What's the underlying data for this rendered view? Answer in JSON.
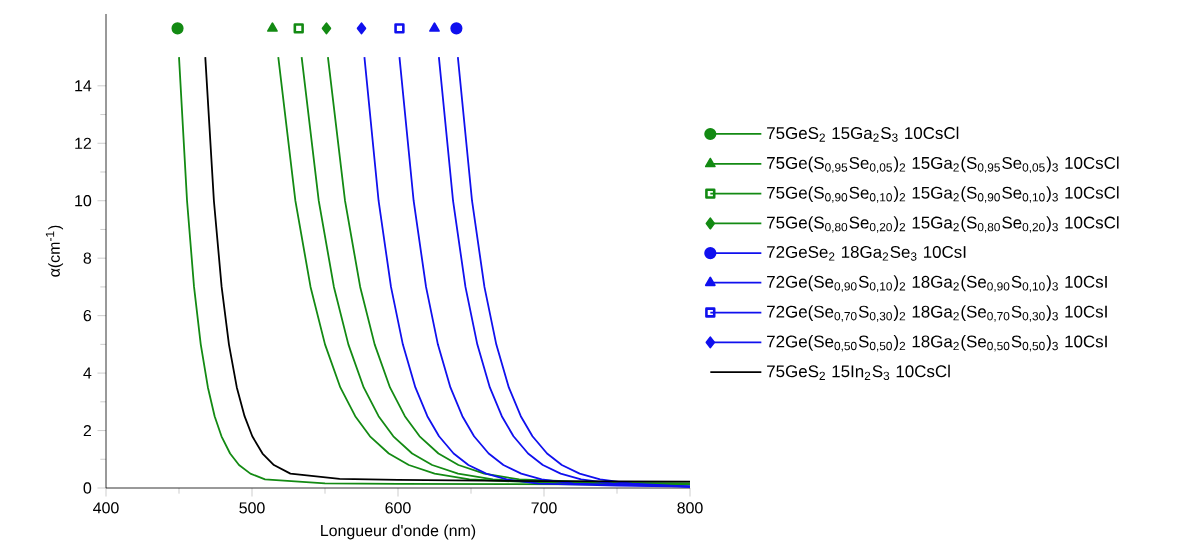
{
  "chart_data": {
    "type": "line",
    "xlabel": "Longueur d'onde (nm)",
    "ylabel": "α(cm$^{-1}$)",
    "xlim": [
      400,
      800
    ],
    "xticks": [
      400,
      500,
      600,
      700,
      800
    ],
    "ylim": [
      0,
      16.5
    ],
    "yticks": [
      0,
      2,
      4,
      6,
      8,
      10,
      12,
      14
    ],
    "legend": "right",
    "series": [
      {
        "type": "scatter",
        "name": "75GeS$_{2}$ 15Ga$_{2}$S$_{3}$ 10CsCl",
        "color": "#138a13",
        "marker": "circle",
        "x": [
          449
        ],
        "values": [
          16
        ]
      },
      {
        "type": "scatter",
        "name": "75Ge(S$_{0,95}$Se$_{0,05}$)$_{2}$ 15Ga$_{2}$(S$_{0,95}$Se$_{0,05}$)$_{3}$ 10CsCl",
        "color": "#138a13",
        "marker": "triangle",
        "x": [
          514
        ],
        "values": [
          16
        ]
      },
      {
        "type": "scatter",
        "name": "75Ge(S$_{0,90}$Se$_{0,10}$)$_{2}$ 15Ga$_{2}$(S$_{0,90}$Se$_{0,10}$)$_{3}$ 10CsCl",
        "color": "#138a13",
        "marker": "square",
        "x": [
          532
        ],
        "values": [
          16
        ]
      },
      {
        "type": "scatter",
        "name": "75Ge(S$_{0,80}$Se$_{0,20}$)$_{2}$ 15Ga$_{2}$(S$_{0,80}$Se$_{0,20}$)$_{3}$ 10CsCl",
        "color": "#138a13",
        "marker": "diamond",
        "x": [
          551
        ],
        "values": [
          16
        ]
      },
      {
        "type": "scatter",
        "name": "72GeSe$_{2}$ 18Ga$_{2}$Se$_{3}$ 10CsI",
        "color": "#1010ee",
        "marker": "circle",
        "x": [
          640
        ],
        "values": [
          16
        ]
      },
      {
        "type": "scatter",
        "name": "72Ge(Se$_{0,90}$S$_{0,10}$)$_{2}$ 18Ga$_{2}$(Se$_{0,90}$S$_{0,10}$)$_{3}$ 10CsI",
        "color": "#1010ee",
        "marker": "triangle",
        "x": [
          625
        ],
        "values": [
          16
        ]
      },
      {
        "type": "scatter",
        "name": "72Ge(Se$_{0,70}$S$_{0,30}$)$_{2}$ 18Ga$_{2}$(Se$_{0,70}$S$_{0,30}$)$_{3}$ 10CsI",
        "color": "#1010ee",
        "marker": "square",
        "x": [
          601
        ],
        "values": [
          16
        ]
      },
      {
        "type": "scatter",
        "name": "72Ge(Se$_{0,50}$S$_{0,50}$)$_{2}$ 18Ga$_{2}$(Se$_{0,50}$S$_{0,50}$)$_{3}$ 10CsI",
        "color": "#1010ee",
        "marker": "diamond",
        "x": [
          575
        ],
        "values": [
          16
        ]
      },
      {
        "color": "#138a13",
        "x": [
          450,
          455.5,
          460.3,
          464.9,
          469.8,
          474.4,
          479.1,
          485.0,
          491.1,
          498.9,
          508.9,
          550,
          600,
          700,
          800
        ],
        "values": [
          15,
          10,
          7,
          5,
          3.5,
          2.5,
          1.8,
          1.2,
          0.8,
          0.5,
          0.3,
          0.16,
          0.14,
          0.13,
          0.12
        ]
      },
      {
        "color": "#138a13",
        "x": [
          518,
          529.7,
          540.1,
          550,
          560.5,
          570.7,
          580.8,
          593.7,
          607.4,
          625.1,
          649,
          700,
          800
        ],
        "values": [
          15,
          10,
          7,
          5,
          3.5,
          2.5,
          1.8,
          1.2,
          0.8,
          0.5,
          0.3,
          0.18,
          0.15
        ]
      },
      {
        "color": "#138a13",
        "x": [
          534,
          545.7,
          556.1,
          566,
          576.5,
          586.7,
          596.8,
          609.7,
          623.4,
          641.1,
          665,
          700,
          800
        ],
        "values": [
          15,
          10,
          7,
          5,
          3.5,
          2.5,
          1.8,
          1.2,
          0.8,
          0.5,
          0.3,
          0.2,
          0.15
        ]
      },
      {
        "color": "#138a13",
        "x": [
          552,
          563.7,
          574.1,
          584,
          594.5,
          604.7,
          614.8,
          627.7,
          641.4,
          659.1,
          683,
          750,
          800
        ],
        "values": [
          15,
          10,
          7,
          5,
          3.5,
          2.5,
          1.8,
          1.2,
          0.8,
          0.5,
          0.3,
          0.17,
          0.15
        ]
      },
      {
        "color": "#1010ee",
        "x": [
          641,
          650.7,
          659.2,
          667.3,
          675.9,
          684.1,
          692.1,
          702.1,
          712.2,
          724.4,
          738.4,
          760.2,
          800
        ],
        "values": [
          15,
          10,
          7,
          5,
          3.5,
          2.5,
          1.8,
          1.2,
          0.8,
          0.5,
          0.3,
          0.15,
          0.05
        ]
      },
      {
        "color": "#1010ee",
        "x": [
          628,
          637.7,
          646.2,
          654.3,
          662.9,
          671.1,
          679.1,
          689.1,
          699.2,
          711.4,
          725.4,
          747.2,
          800
        ],
        "values": [
          15,
          10,
          7,
          5,
          3.5,
          2.5,
          1.8,
          1.2,
          0.8,
          0.5,
          0.3,
          0.15,
          0.05
        ]
      },
      {
        "color": "#1010ee",
        "x": [
          601,
          610.7,
          619.2,
          627.3,
          635.9,
          644.1,
          652.1,
          662.1,
          672.2,
          684.4,
          698.4,
          720.2,
          800
        ],
        "values": [
          15,
          10,
          7,
          5,
          3.5,
          2.5,
          1.8,
          1.2,
          0.8,
          0.5,
          0.3,
          0.15,
          0.05
        ]
      },
      {
        "color": "#1010ee",
        "x": [
          577,
          586.7,
          595.2,
          603.3,
          611.9,
          620.1,
          628.1,
          638.1,
          648.2,
          660.4,
          674.4,
          696.2,
          750,
          800
        ],
        "values": [
          15,
          10,
          7,
          5,
          3.5,
          2.5,
          1.8,
          1.2,
          0.8,
          0.5,
          0.3,
          0.15,
          0.08,
          0.05
        ]
      },
      {
        "name": "75GeS$_{2}$ 15In$_{2}$S$_{3}$ 10CsCl",
        "color": "#000000",
        "x": [
          468,
          473.9,
          479.2,
          484.2,
          489.6,
          494.9,
          500.2,
          507.2,
          515,
          526.3,
          560,
          600,
          700,
          800
        ],
        "values": [
          15,
          10,
          7,
          5,
          3.5,
          2.5,
          1.8,
          1.2,
          0.8,
          0.5,
          0.32,
          0.28,
          0.24,
          0.22
        ]
      }
    ]
  }
}
